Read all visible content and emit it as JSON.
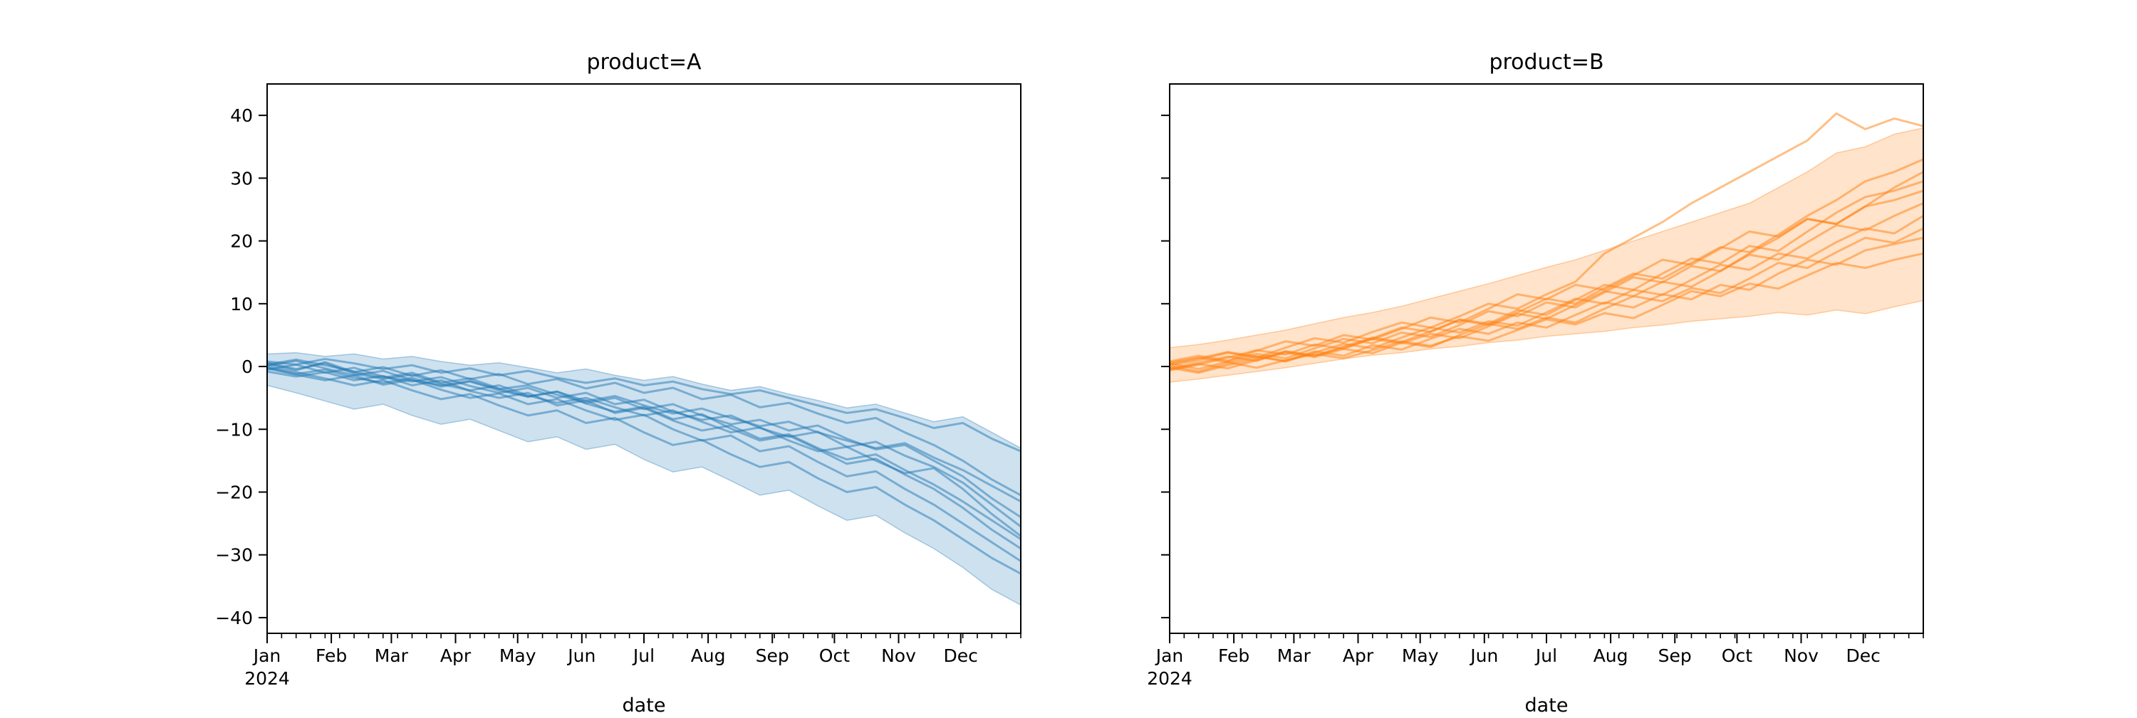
{
  "figure": {
    "background": "#ffffff"
  },
  "chart_data": [
    {
      "type": "line",
      "title": "product=A",
      "xlabel": "date",
      "color": "#1f77b4",
      "legend": "none",
      "grid": false,
      "y_axis": {
        "tick_values": [
          40,
          30,
          20,
          10,
          0,
          -10,
          -20,
          -30,
          -40
        ],
        "tick_labels": [
          "40",
          "30",
          "20",
          "10",
          "0",
          "−10",
          "−20",
          "−30",
          "−40"
        ],
        "show_tick_labels": true,
        "ylim": [
          -42.5,
          45.0
        ]
      },
      "x_axis": {
        "months": [
          "Jan",
          "Feb",
          "Mar",
          "Apr",
          "May",
          "Jun",
          "Jul",
          "Aug",
          "Sep",
          "Oct",
          "Nov",
          "Dec"
        ],
        "year_label": "2024",
        "month_start_days": [
          0,
          31,
          60,
          91,
          121,
          152,
          182,
          213,
          244,
          274,
          305,
          335
        ],
        "total_days": 364,
        "minor_tick_interval_days": 7
      },
      "sample_days": [
        0,
        14,
        28,
        42,
        56,
        70,
        84,
        98,
        112,
        126,
        140,
        154,
        168,
        182,
        196,
        210,
        224,
        238,
        252,
        266,
        280,
        294,
        308,
        322,
        336,
        350,
        364
      ],
      "band": {
        "hi": [
          2.0,
          2.2,
          1.6,
          2.0,
          1.2,
          1.6,
          0.8,
          0.2,
          0.6,
          -0.2,
          -1.0,
          -0.4,
          -1.4,
          -2.2,
          -1.6,
          -2.8,
          -3.8,
          -3.2,
          -4.4,
          -5.4,
          -6.6,
          -6.0,
          -7.4,
          -8.8,
          -8.0,
          -10.5,
          -13.0
        ],
        "lo": [
          -3.0,
          -4.2,
          -5.5,
          -6.8,
          -6.0,
          -7.8,
          -9.2,
          -8.4,
          -10.2,
          -12.0,
          -11.2,
          -13.2,
          -12.4,
          -14.8,
          -16.8,
          -16.0,
          -18.2,
          -20.5,
          -19.7,
          -22.2,
          -24.5,
          -23.7,
          -26.5,
          -29.0,
          -32.0,
          -35.5,
          -38.0
        ]
      },
      "series": [
        [
          0.8,
          0.3,
          1.2,
          0.5,
          -0.4,
          0.2,
          -1.0,
          -0.3,
          -1.4,
          -0.7,
          -1.8,
          -2.6,
          -1.9,
          -3.0,
          -2.4,
          -3.6,
          -4.4,
          -3.8,
          -5.0,
          -6.2,
          -7.4,
          -6.8,
          -8.2,
          -9.8,
          -9.0,
          -11.5,
          -13.5
        ],
        [
          0.4,
          -0.6,
          0.7,
          -0.9,
          -0.1,
          -1.5,
          -0.6,
          -2.0,
          -1.2,
          -2.8,
          -2.0,
          -3.5,
          -2.6,
          -4.2,
          -3.4,
          -5.2,
          -4.5,
          -6.5,
          -5.8,
          -7.5,
          -9.0,
          -8.2,
          -10.5,
          -12.5,
          -15.0,
          -18.0,
          -20.5
        ],
        [
          -0.2,
          -1.2,
          -0.5,
          -1.8,
          -2.6,
          -1.8,
          -3.2,
          -2.4,
          -3.8,
          -4.8,
          -4.0,
          -5.5,
          -4.7,
          -6.2,
          -7.5,
          -6.7,
          -8.2,
          -9.5,
          -8.8,
          -10.5,
          -11.8,
          -13.0,
          -12.2,
          -14.5,
          -16.5,
          -19.0,
          -21.5
        ],
        [
          0.1,
          0.9,
          -0.3,
          -1.4,
          -0.7,
          -2.2,
          -3.0,
          -2.3,
          -3.6,
          -3.0,
          -4.5,
          -5.8,
          -5.0,
          -6.8,
          -6.0,
          -7.8,
          -9.2,
          -8.5,
          -10.2,
          -9.4,
          -11.5,
          -13.2,
          -12.5,
          -15.0,
          -17.5,
          -21.0,
          -24.0
        ],
        [
          -0.5,
          0.3,
          -1.0,
          -0.2,
          -1.6,
          -2.4,
          -1.7,
          -3.1,
          -4.2,
          -3.4,
          -5.0,
          -4.2,
          -6.0,
          -5.3,
          -7.2,
          -8.5,
          -7.8,
          -9.8,
          -11.2,
          -10.4,
          -12.8,
          -12.0,
          -14.2,
          -16.0,
          -18.5,
          -22.0,
          -25.5
        ],
        [
          0.6,
          -0.4,
          0.5,
          -1.1,
          -2.0,
          -1.3,
          -2.8,
          -3.8,
          -3.0,
          -4.6,
          -5.8,
          -5.0,
          -6.5,
          -7.8,
          -7.0,
          -8.8,
          -10.5,
          -9.7,
          -11.8,
          -13.5,
          -12.8,
          -15.0,
          -17.0,
          -16.2,
          -19.5,
          -23.5,
          -27.0
        ],
        [
          -0.8,
          -1.6,
          -0.9,
          -2.2,
          -1.5,
          -3.0,
          -2.2,
          -3.9,
          -5.0,
          -4.2,
          -6.2,
          -5.4,
          -7.4,
          -6.6,
          -8.6,
          -10.2,
          -9.4,
          -11.5,
          -10.8,
          -13.0,
          -14.8,
          -14.0,
          -16.5,
          -18.8,
          -21.5,
          -24.5,
          -27.5
        ],
        [
          0.3,
          1.1,
          0.2,
          -0.8,
          -1.8,
          -1.0,
          -2.6,
          -1.9,
          -3.5,
          -4.8,
          -4.0,
          -5.9,
          -7.2,
          -6.4,
          -8.4,
          -7.6,
          -9.9,
          -11.8,
          -11.0,
          -13.2,
          -15.5,
          -14.7,
          -17.2,
          -19.5,
          -22.5,
          -26.0,
          -29.0
        ],
        [
          -0.3,
          -1.3,
          -2.2,
          -1.4,
          -2.9,
          -2.1,
          -3.7,
          -5.0,
          -4.3,
          -6.0,
          -5.2,
          -7.0,
          -8.5,
          -7.7,
          -10.0,
          -11.8,
          -11.0,
          -13.5,
          -12.7,
          -15.2,
          -17.5,
          -16.7,
          -19.5,
          -22.0,
          -25.0,
          -28.0,
          -31.0
        ],
        [
          0.0,
          -0.9,
          -1.9,
          -3.0,
          -2.2,
          -3.8,
          -5.2,
          -4.4,
          -6.2,
          -7.8,
          -7.0,
          -9.0,
          -8.2,
          -10.5,
          -12.5,
          -11.7,
          -14.0,
          -16.0,
          -15.2,
          -17.8,
          -20.0,
          -19.2,
          -22.0,
          -24.5,
          -27.5,
          -30.5,
          -33.0
        ]
      ]
    },
    {
      "type": "line",
      "title": "product=B",
      "xlabel": "date",
      "color": "#ff7f0e",
      "legend": "none",
      "grid": false,
      "y_axis": {
        "tick_values": [
          40,
          30,
          20,
          10,
          0,
          -10,
          -20,
          -30,
          -40
        ],
        "tick_labels": [
          "40",
          "30",
          "20",
          "10",
          "0",
          "−10",
          "−20",
          "−30",
          "−40"
        ],
        "show_tick_labels": false,
        "ylim": [
          -42.5,
          45.0
        ]
      },
      "x_axis": {
        "months": [
          "Jan",
          "Feb",
          "Mar",
          "Apr",
          "May",
          "Jun",
          "Jul",
          "Aug",
          "Sep",
          "Oct",
          "Nov",
          "Dec"
        ],
        "year_label": "2024",
        "month_start_days": [
          0,
          31,
          60,
          91,
          121,
          152,
          182,
          213,
          244,
          274,
          305,
          335
        ],
        "total_days": 364,
        "minor_tick_interval_days": 7
      },
      "sample_days": [
        0,
        14,
        28,
        42,
        56,
        70,
        84,
        98,
        112,
        126,
        140,
        154,
        168,
        182,
        196,
        210,
        224,
        238,
        252,
        266,
        280,
        294,
        308,
        322,
        336,
        350,
        364
      ],
      "band": {
        "hi": [
          3.0,
          3.5,
          4.2,
          5.0,
          5.8,
          6.8,
          7.8,
          8.6,
          9.6,
          10.8,
          12.0,
          13.2,
          14.5,
          15.8,
          17.0,
          18.5,
          20.0,
          21.5,
          23.0,
          24.5,
          26.0,
          28.5,
          31.0,
          34.0,
          35.0,
          37.0,
          38.0
        ],
        "lo": [
          -2.5,
          -2.0,
          -1.4,
          -0.8,
          -0.2,
          0.5,
          1.2,
          1.8,
          2.2,
          2.8,
          3.2,
          3.8,
          4.2,
          4.8,
          5.2,
          5.6,
          6.2,
          6.6,
          7.2,
          7.6,
          8.0,
          8.6,
          8.2,
          9.0,
          8.4,
          9.5,
          10.5
        ]
      },
      "series": [
        [
          0.2,
          1.0,
          2.2,
          1.4,
          3.0,
          4.5,
          3.8,
          5.5,
          7.0,
          6.2,
          8.0,
          10.0,
          9.2,
          11.5,
          13.5,
          18.0,
          20.5,
          23.0,
          26.0,
          28.5,
          31.0,
          33.5,
          36.0,
          40.3,
          37.8,
          39.5,
          38.3
        ],
        [
          -0.3,
          0.6,
          1.6,
          0.9,
          2.4,
          1.7,
          3.2,
          4.6,
          3.9,
          5.6,
          7.4,
          6.6,
          8.6,
          10.8,
          10.0,
          12.5,
          14.8,
          14.0,
          16.5,
          19.0,
          18.2,
          21.0,
          24.0,
          26.5,
          29.5,
          31.0,
          33.0
        ],
        [
          0.5,
          -0.4,
          0.8,
          2.0,
          1.3,
          2.9,
          4.4,
          3.7,
          5.4,
          4.7,
          6.6,
          8.8,
          8.0,
          10.2,
          9.4,
          11.8,
          14.2,
          13.4,
          16.0,
          15.2,
          18.0,
          20.5,
          23.5,
          22.7,
          25.5,
          28.5,
          31.0
        ],
        [
          -0.6,
          0.3,
          1.4,
          2.6,
          1.9,
          3.5,
          2.8,
          4.5,
          6.2,
          5.5,
          7.5,
          6.8,
          9.0,
          8.2,
          10.6,
          13.0,
          12.2,
          14.8,
          17.2,
          16.4,
          19.2,
          18.4,
          21.5,
          24.5,
          27.0,
          28.0,
          29.5
        ],
        [
          0.8,
          1.7,
          0.9,
          2.5,
          4.0,
          3.3,
          5.0,
          4.3,
          6.0,
          7.8,
          7.0,
          9.2,
          11.5,
          10.7,
          13.0,
          12.2,
          14.5,
          17.0,
          16.2,
          18.8,
          21.5,
          20.7,
          23.5,
          22.7,
          25.5,
          26.5,
          28.0
        ],
        [
          -0.2,
          -1.0,
          0.2,
          1.2,
          2.4,
          1.7,
          3.0,
          4.4,
          3.7,
          5.2,
          4.5,
          6.4,
          8.4,
          7.6,
          9.8,
          12.0,
          11.2,
          13.5,
          12.7,
          15.2,
          17.8,
          17.0,
          19.8,
          22.5,
          21.7,
          24.0,
          26.0
        ],
        [
          0.4,
          1.3,
          2.3,
          1.6,
          0.8,
          2.2,
          3.6,
          2.9,
          4.6,
          6.2,
          5.4,
          7.2,
          6.5,
          8.6,
          10.8,
          10.0,
          12.2,
          11.4,
          13.8,
          16.2,
          15.4,
          18.0,
          17.2,
          19.8,
          22.0,
          21.2,
          24.0
        ],
        [
          -0.5,
          0.4,
          -0.3,
          1.0,
          2.2,
          1.5,
          2.8,
          2.1,
          3.8,
          3.1,
          5.0,
          6.8,
          6.0,
          7.8,
          7.0,
          9.2,
          11.2,
          10.4,
          12.5,
          11.7,
          14.0,
          16.5,
          15.7,
          18.2,
          20.5,
          19.7,
          22.0
        ],
        [
          0.1,
          -0.8,
          0.5,
          1.6,
          0.9,
          2.4,
          1.7,
          3.4,
          2.7,
          4.4,
          6.0,
          5.2,
          7.0,
          6.2,
          8.2,
          10.2,
          9.4,
          11.5,
          10.7,
          13.0,
          12.2,
          14.8,
          17.0,
          16.2,
          18.5,
          19.5,
          20.5
        ],
        [
          0.6,
          1.4,
          0.7,
          -0.2,
          1.0,
          2.0,
          1.3,
          2.6,
          4.0,
          3.3,
          4.8,
          4.1,
          5.8,
          7.5,
          6.7,
          8.5,
          7.7,
          9.8,
          12.0,
          11.2,
          13.2,
          12.4,
          14.5,
          16.5,
          15.7,
          17.0,
          18.0
        ]
      ]
    }
  ]
}
